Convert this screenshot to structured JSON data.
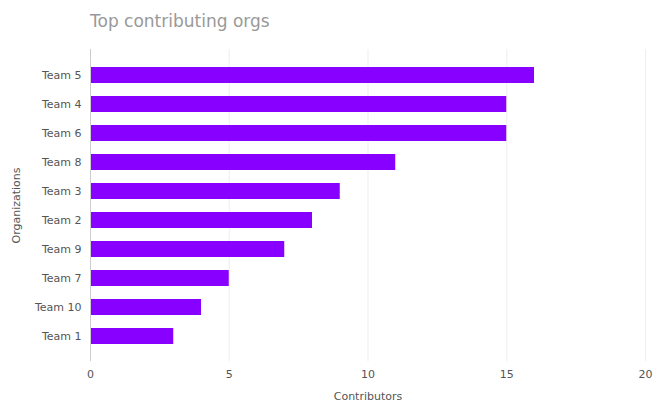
{
  "chart_data": {
    "type": "bar",
    "orientation": "horizontal",
    "title": "Top contributing orgs",
    "xlabel": "Contributors",
    "ylabel": "Organizations",
    "categories": [
      "Team 5",
      "Team 4",
      "Team 6",
      "Team 8",
      "Team 3",
      "Team 2",
      "Team 9",
      "Team 7",
      "Team 10",
      "Team 1"
    ],
    "values": [
      16,
      15,
      15,
      11,
      9,
      8,
      7,
      5,
      4,
      3
    ],
    "color": "#8800ff",
    "xlim": [
      0,
      20
    ],
    "xticks": [
      0,
      5,
      10,
      15,
      20
    ],
    "grid": true
  }
}
